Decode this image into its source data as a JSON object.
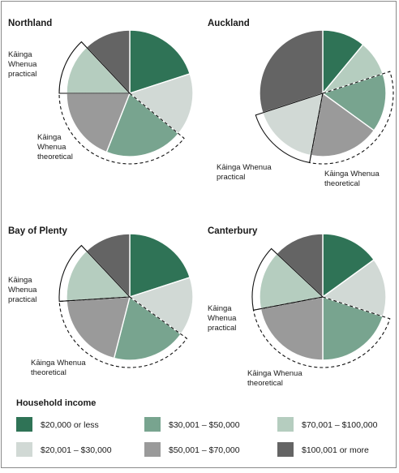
{
  "chart_data": [
    {
      "type": "pie",
      "title": "Northland",
      "categories": [
        "$20,000 or less",
        "$20,001 – $30,000",
        "$30,001 – $50,000",
        "$50,001 – $70,000",
        "$70,001 – $100,000",
        "$100,001 or more"
      ],
      "values": [
        20,
        16,
        20,
        19,
        13,
        12
      ],
      "annotations": [
        {
          "lines": [
            "Kāinga",
            "Whenua",
            "practical"
          ],
          "range": [
            4,
            4
          ],
          "style": "solid"
        },
        {
          "lines": [
            "Kāinga",
            "Whenua",
            "theoretical"
          ],
          "range": [
            2,
            3
          ],
          "style": "dashed"
        }
      ]
    },
    {
      "type": "pie",
      "title": "Auckland",
      "categories": [
        "$20,000 or less",
        "$70,001 – $100,000",
        "$30,001 – $50,000",
        "$50,001 – $70,000",
        "$20,001 – $30,000",
        "$100,001 or more"
      ],
      "values": [
        11,
        9,
        15,
        18,
        17,
        30
      ],
      "annotations": [
        {
          "lines": [
            "Kāinga Whenua",
            "practical"
          ],
          "range": [
            4,
            4
          ],
          "style": "solid"
        },
        {
          "lines": [
            "Kāinga Whenua",
            "theoretical"
          ],
          "range": [
            2,
            3
          ],
          "style": "dashed"
        }
      ]
    },
    {
      "type": "pie",
      "title": "Bay of Plenty",
      "categories": [
        "$20,000 or less",
        "$20,001 – $30,000",
        "$30,001 – $50,000",
        "$50,001 – $70,000",
        "$70,001 – $100,000",
        "$100,001 or more"
      ],
      "values": [
        20,
        15,
        19,
        20,
        14,
        12
      ],
      "annotations": [
        {
          "lines": [
            "Kāinga",
            "Whenua",
            "practical"
          ],
          "range": [
            4,
            4
          ],
          "style": "solid"
        },
        {
          "lines": [
            "Kāinga Whenua",
            "theoretical"
          ],
          "range": [
            2,
            3
          ],
          "style": "dashed"
        }
      ]
    },
    {
      "type": "pie",
      "title": "Canterbury",
      "categories": [
        "$20,000 or less",
        "$20,001 – $30,000",
        "$30,001 – $50,000",
        "$50,001 – $70,000",
        "$70,001 – $100,000",
        "$100,001 or more"
      ],
      "values": [
        15,
        15,
        20,
        22,
        15,
        13
      ],
      "annotations": [
        {
          "lines": [
            "Kāinga",
            "Whenua",
            "practical"
          ],
          "range": [
            4,
            4
          ],
          "style": "solid"
        },
        {
          "lines": [
            "Kāinga Whenua",
            "theoretical"
          ],
          "range": [
            2,
            3
          ],
          "style": "dashed"
        }
      ]
    }
  ],
  "colors": {
    "$20,000 or less": "#2f7356",
    "$20,001 – $30,000": "#d1d9d5",
    "$30,001 – $50,000": "#78a48f",
    "$50,001 – $70,000": "#9a9a9a",
    "$70,001 – $100,000": "#b5cdbf",
    "$100,001 or more": "#646464"
  },
  "legend": {
    "title": "Household income",
    "items": [
      "$20,000 or less",
      "$30,001 – $50,000",
      "$70,001 – $100,000",
      "$20,001 – $30,000",
      "$50,001 – $70,000",
      "$100,001 or more"
    ]
  }
}
